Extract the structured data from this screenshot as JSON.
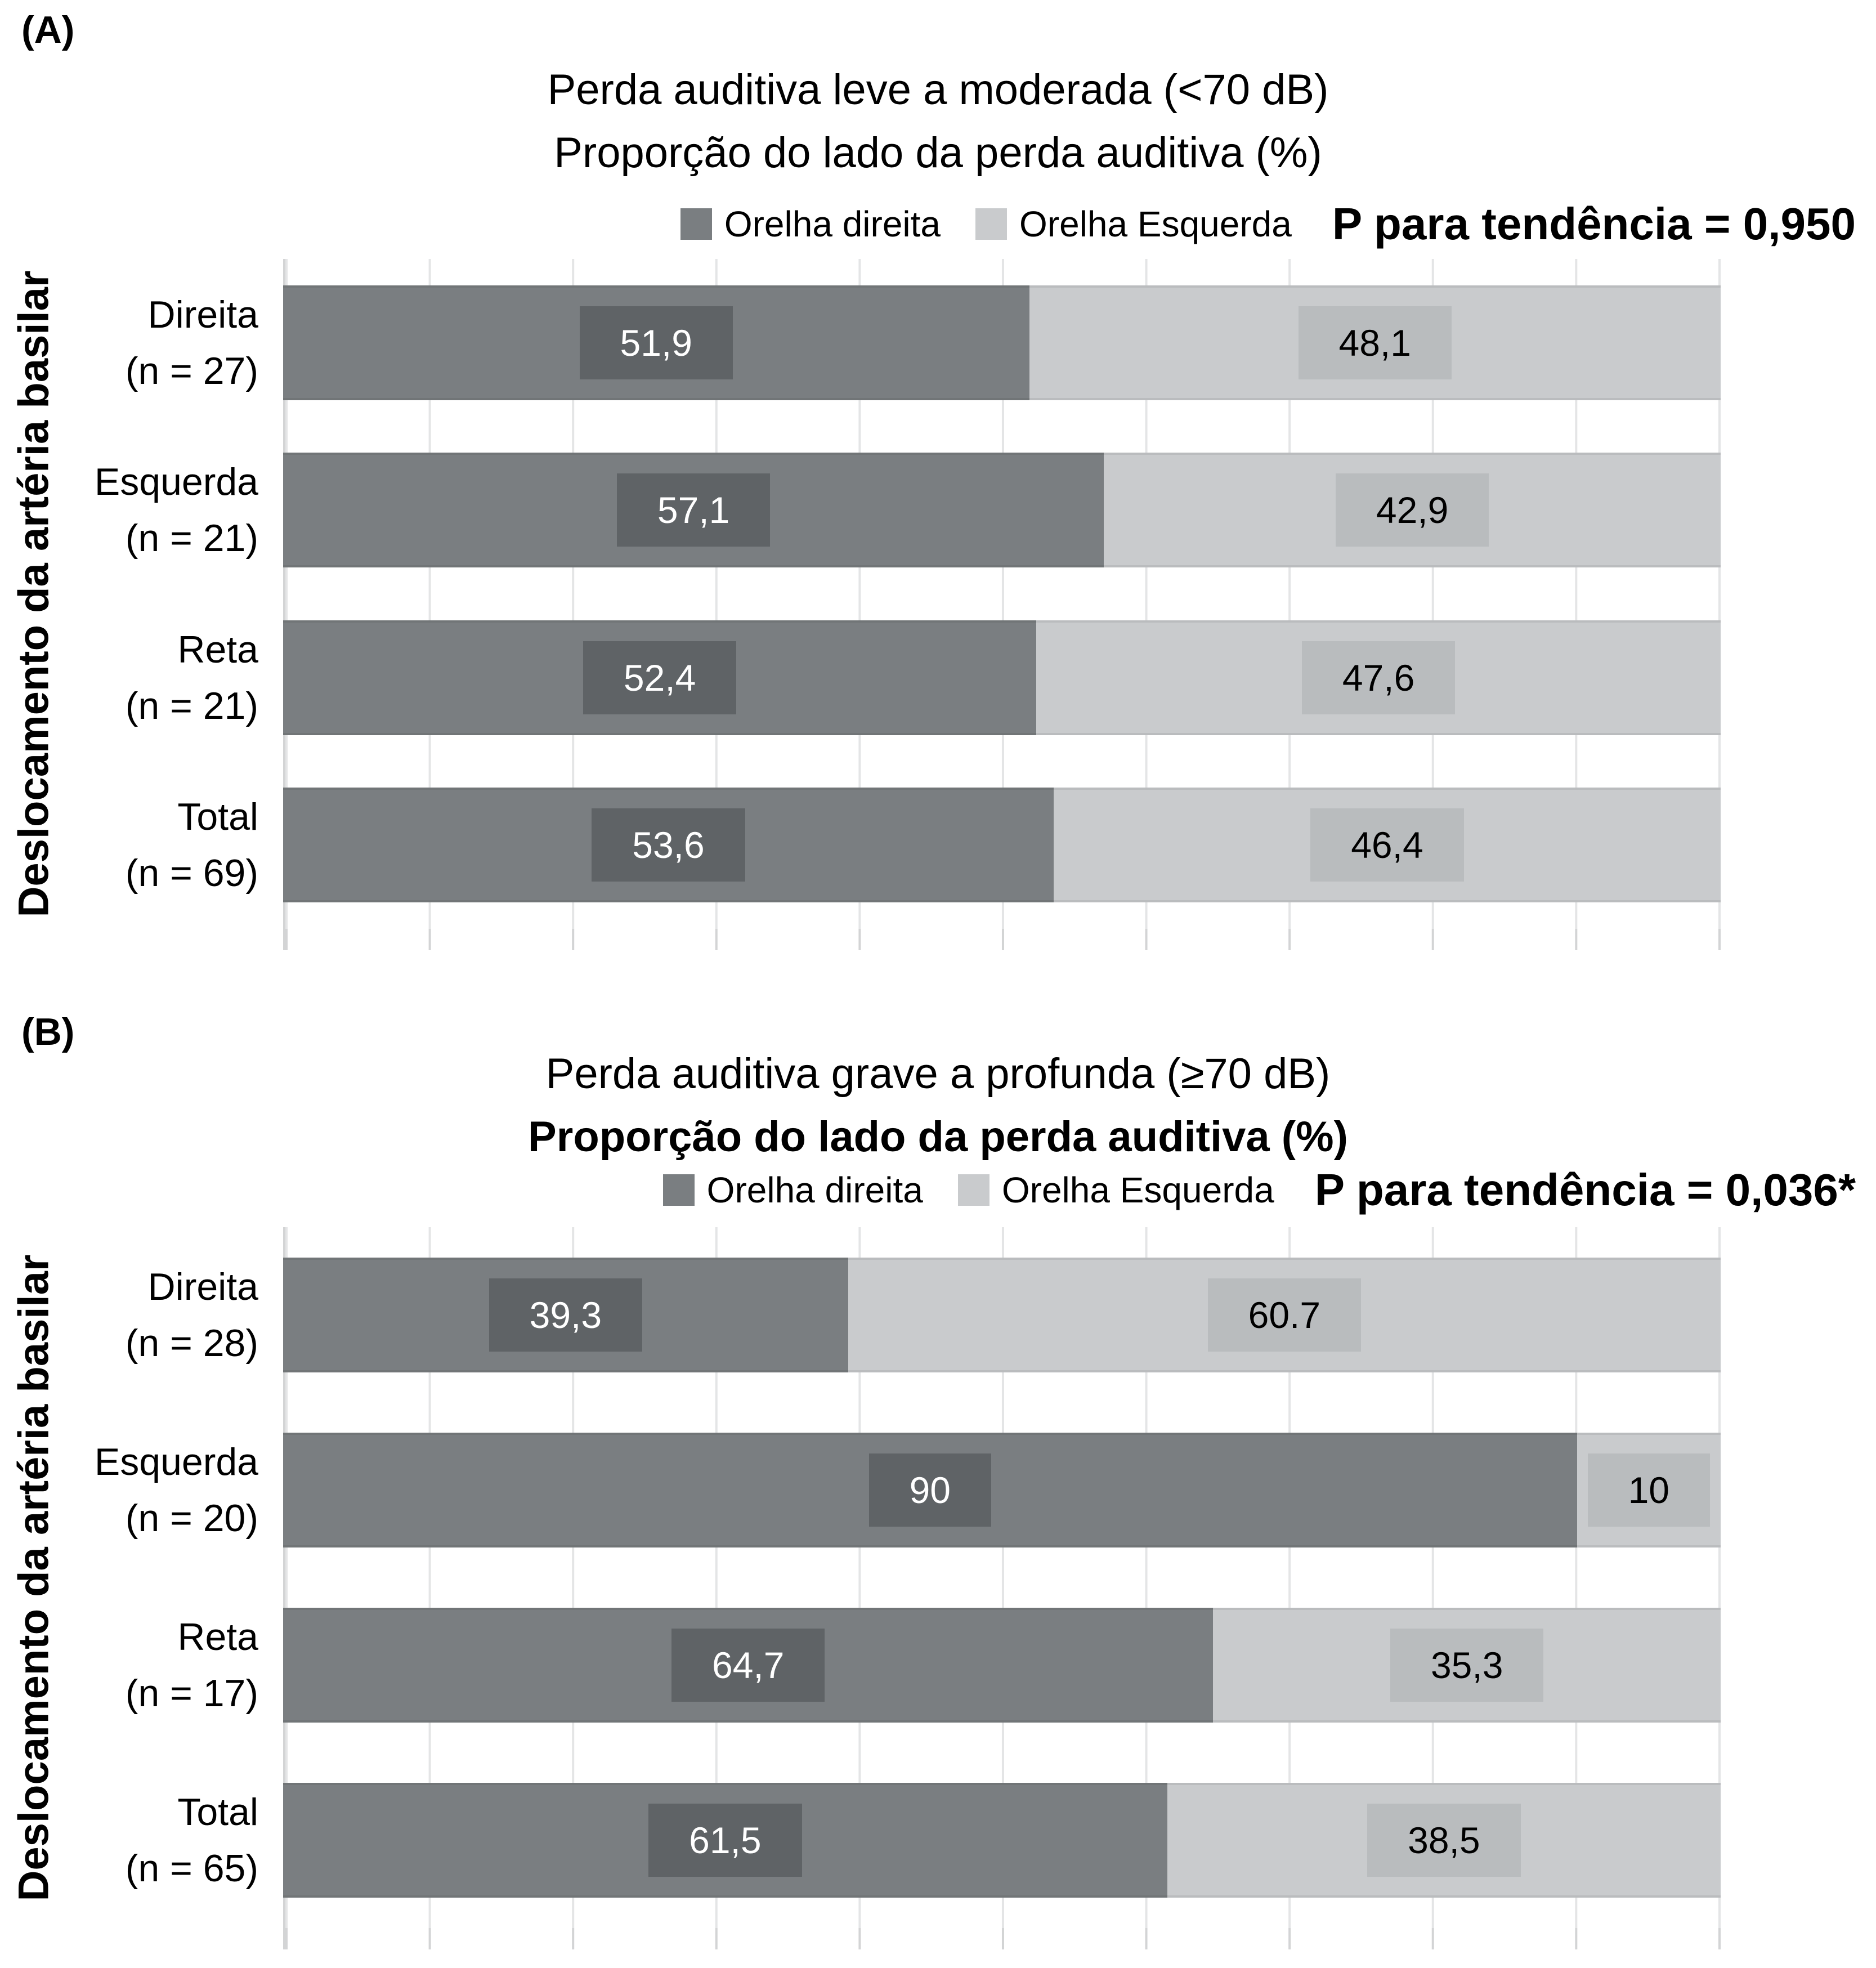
{
  "colors": {
    "right_ear": "#7a7e81",
    "right_ear_chip": "#5f6366",
    "left_ear": "#c9cbcd",
    "left_ear_chip": "#b9bcbe",
    "gridline": "#e4e5e6",
    "axis": "#d3d4d5"
  },
  "chart_data": [
    {
      "type": "bar",
      "orientation": "horizontal",
      "stacked": true,
      "panel_label": "(A)",
      "title": "Perda auditiva leve a moderada (<70 dB)",
      "subtitle": "Proporção do lado da perda auditiva (%)",
      "subtitle_bold": false,
      "p_annotation": "P para tendência = 0,950",
      "ylabel": "Deslocamento da artéria basilar",
      "xlim": [
        0,
        100
      ],
      "gridline_interval_pct": 10,
      "grid": true,
      "legend_position": "top-right",
      "legend": [
        "Orelha direita",
        "Orelha Esquerda"
      ],
      "categories": [
        {
          "line1": "Direita",
          "line2": "(n = 27)"
        },
        {
          "line1": "Esquerda",
          "line2": "(n = 21)"
        },
        {
          "line1": "Reta",
          "line2": "(n = 21)"
        },
        {
          "line1": "Total",
          "line2": "(n = 69)"
        }
      ],
      "series": [
        {
          "name": "Orelha direita",
          "values": [
            51.9,
            57.1,
            52.4,
            53.6
          ],
          "labels": [
            "51,9",
            "57,1",
            "52,4",
            "53,6"
          ]
        },
        {
          "name": "Orelha Esquerda",
          "values": [
            48.1,
            42.9,
            47.6,
            46.4
          ],
          "labels": [
            "48,1",
            "42,9",
            "47,6",
            "46,4"
          ]
        }
      ]
    },
    {
      "type": "bar",
      "orientation": "horizontal",
      "stacked": true,
      "panel_label": "(B)",
      "title": "Perda auditiva grave a profunda (≥70 dB)",
      "subtitle": "Proporção do lado da perda auditiva (%)",
      "subtitle_bold": true,
      "p_annotation": "P para tendência = 0,036*",
      "ylabel": "Deslocamento da artéria basilar",
      "xlim": [
        0,
        100
      ],
      "gridline_interval_pct": 10,
      "grid": true,
      "legend_position": "top-right",
      "legend": [
        "Orelha direita",
        "Orelha Esquerda"
      ],
      "categories": [
        {
          "line1": "Direita",
          "line2": "(n = 28)"
        },
        {
          "line1": "Esquerda",
          "line2": "(n = 20)"
        },
        {
          "line1": "Reta",
          "line2": "(n = 17)"
        },
        {
          "line1": "Total",
          "line2": "(n = 65)"
        }
      ],
      "series": [
        {
          "name": "Orelha direita",
          "values": [
            39.3,
            90,
            64.7,
            61.5
          ],
          "labels": [
            "39,3",
            "90",
            "64,7",
            "61,5"
          ]
        },
        {
          "name": "Orelha Esquerda",
          "values": [
            60.7,
            10,
            35.3,
            38.5
          ],
          "labels": [
            "60.7",
            "10",
            "35,3",
            "38,5"
          ]
        }
      ]
    }
  ]
}
